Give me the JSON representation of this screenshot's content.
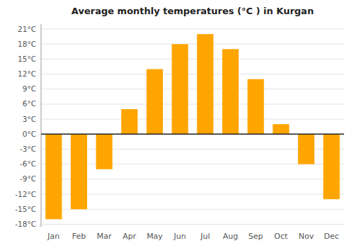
{
  "chart_data": {
    "type": "bar",
    "title": "Average monthly temperatures (°C ) in Kurgan",
    "categories": [
      "Jan",
      "Feb",
      "Mar",
      "Apr",
      "May",
      "Jun",
      "Jul",
      "Aug",
      "Sep",
      "Oct",
      "Nov",
      "Dec"
    ],
    "values": [
      -17,
      -15,
      -7,
      5,
      13,
      18,
      20,
      17,
      11,
      2,
      -6,
      -13
    ],
    "color": "#FFA500",
    "ylim": [
      -18.5,
      22
    ],
    "yticks": [
      {
        "value": -18,
        "label": "-18°C"
      },
      {
        "value": -15,
        "label": "-15°C"
      },
      {
        "value": -12,
        "label": "-12°C"
      },
      {
        "value": -9,
        "label": "-9°C"
      },
      {
        "value": -6,
        "label": "-6°C"
      },
      {
        "value": -3,
        "label": "-3°C"
      },
      {
        "value": 0,
        "label": "0°C"
      },
      {
        "value": 3,
        "label": "3°C"
      },
      {
        "value": 6,
        "label": "6°C"
      },
      {
        "value": 9,
        "label": "9°C"
      },
      {
        "value": 12,
        "label": "12°C"
      },
      {
        "value": 15,
        "label": "15°C"
      },
      {
        "value": 18,
        "label": "18°C"
      },
      {
        "value": 21,
        "label": "21°C"
      }
    ],
    "grid": true
  }
}
